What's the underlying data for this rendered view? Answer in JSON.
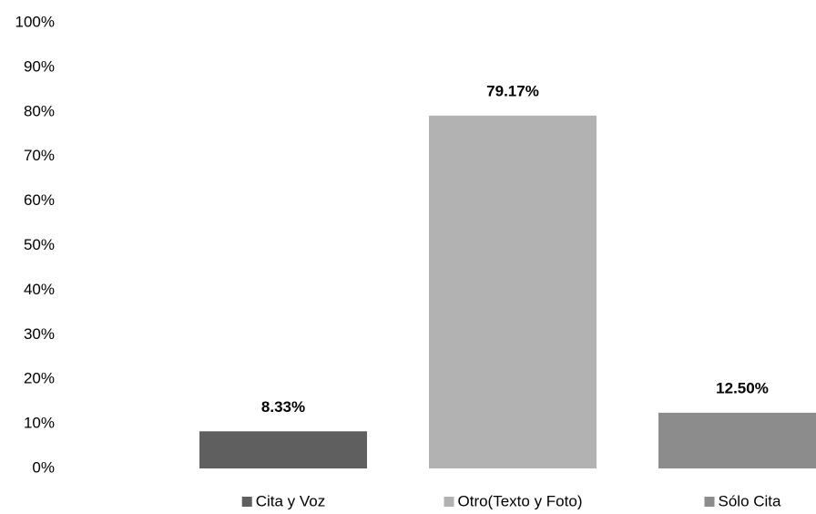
{
  "chart_data": {
    "type": "bar",
    "categories": [
      "Cita y Voz",
      "Otro(Texto y Foto)",
      "Sólo Cita"
    ],
    "values": [
      8.33,
      79.17,
      12.5
    ],
    "value_labels": [
      "8.33%",
      "79.17%",
      "12.50%"
    ],
    "colors": [
      "#5f5f5f",
      "#b2b2b2",
      "#8c8c8c"
    ],
    "ylim": [
      0,
      100
    ],
    "yticks": [
      {
        "value": 0,
        "label": "0%"
      },
      {
        "value": 10,
        "label": "10%"
      },
      {
        "value": 20,
        "label": "20%"
      },
      {
        "value": 30,
        "label": "30%"
      },
      {
        "value": 40,
        "label": "40%"
      },
      {
        "value": 50,
        "label": "50%"
      },
      {
        "value": 60,
        "label": "60%"
      },
      {
        "value": 70,
        "label": "70%"
      },
      {
        "value": 80,
        "label": "80%"
      },
      {
        "value": 90,
        "label": "90%"
      },
      {
        "value": 100,
        "label": "100%"
      }
    ],
    "grid": false
  }
}
